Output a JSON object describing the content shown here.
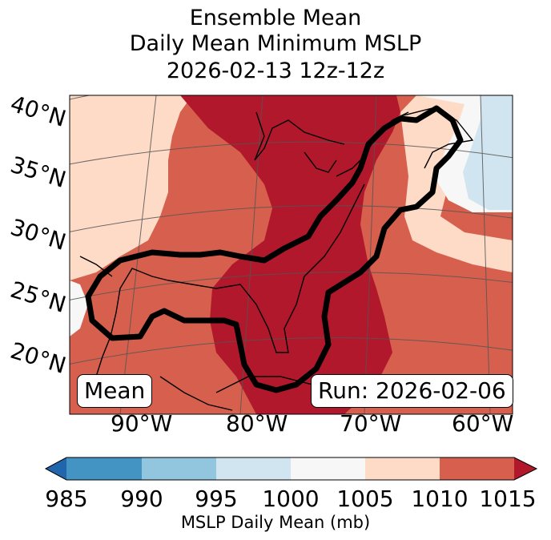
{
  "title": {
    "line1": "Ensemble Mean",
    "line2": "Daily Mean Minimum MSLP",
    "line3": "2026-02-13 12z-12z"
  },
  "lat_labels": [
    "40°N",
    "35°N",
    "30°N",
    "25°N",
    "20°N"
  ],
  "lon_labels": [
    "90°W",
    "80°W",
    "70°W",
    "60°W"
  ],
  "mean_box": "Mean",
  "run_box": "Run: 2026-02-06",
  "colorbar": {
    "label": "MSLP Daily Mean (mb)",
    "ticks": [
      "985",
      "990",
      "995",
      "1000",
      "1005",
      "1010",
      "1015"
    ],
    "colors": [
      "#4393c3",
      "#92c5de",
      "#d1e5f0",
      "#f7f7f7",
      "#fddbc7",
      "#d6604d",
      "#b2182b",
      "#2166ac"
    ],
    "extend": "both"
  },
  "legend_colors": {
    "land_outline": "#000000",
    "contour": "#000000"
  }
}
